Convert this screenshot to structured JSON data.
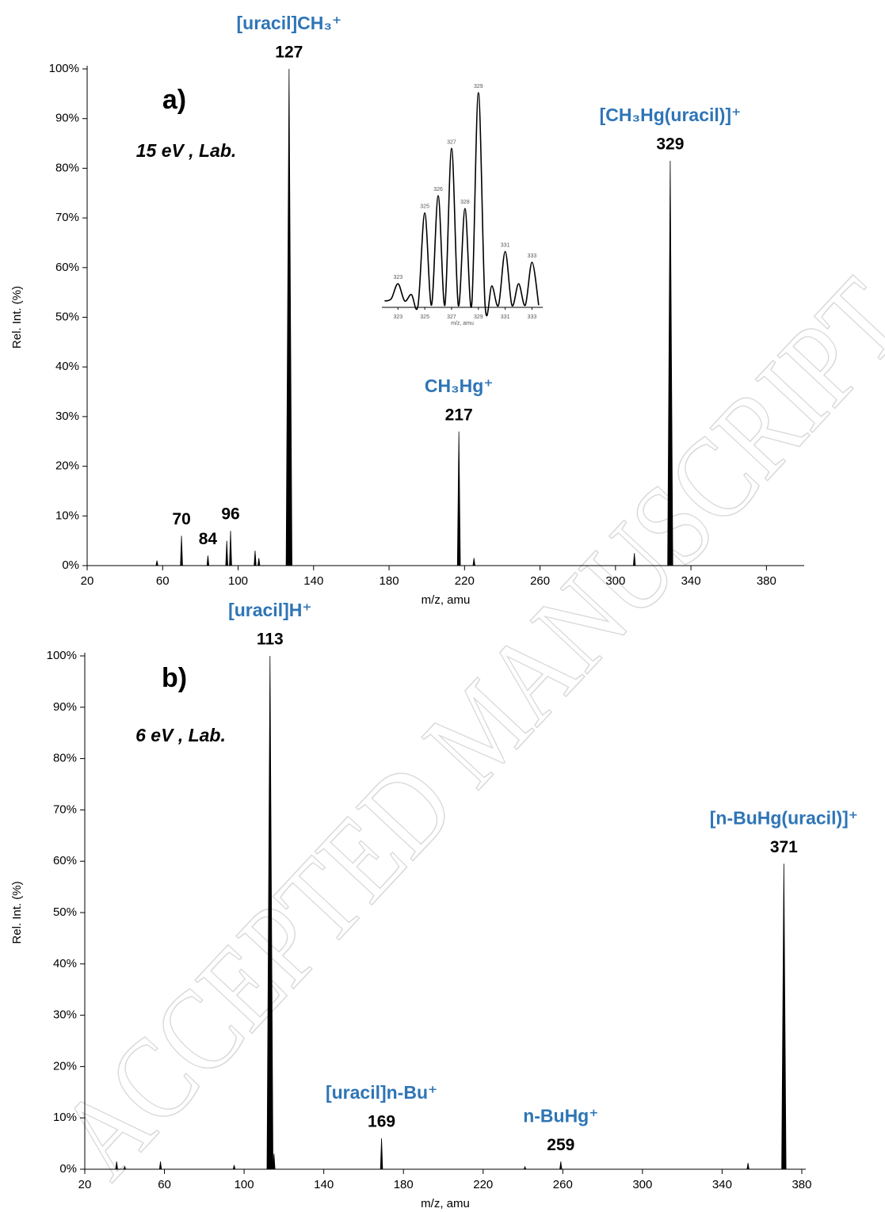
{
  "watermark": "ACCEPTED MANUSCRIPT",
  "chart_data": [
    {
      "type": "bar",
      "panel_label": "a)",
      "subtitle": "15 eV , Lab.",
      "ylabel": "Rel. Int. (%)",
      "xlabel": "m/z, amu",
      "color": "#000000",
      "x": [
        57,
        70,
        84,
        94,
        96,
        109,
        111,
        127,
        217,
        225,
        310,
        329
      ],
      "values": [
        1,
        6,
        2,
        5,
        7,
        3,
        1.5,
        100,
        27,
        1.5,
        2.5,
        81.5
      ],
      "peak_labels": [
        null,
        "70",
        "84",
        null,
        "96",
        null,
        null,
        "127",
        "217",
        null,
        null,
        "329"
      ],
      "ion_names": [
        null,
        null,
        null,
        null,
        null,
        null,
        null,
        "[uracil]CH₃⁺",
        "CH₃Hg⁺",
        null,
        null,
        "[CH₃Hg(uracil)]⁺"
      ],
      "ion_color": "#2e75b6",
      "xlim": [
        20,
        400
      ],
      "xticks": [
        20,
        60,
        100,
        140,
        180,
        220,
        260,
        300,
        340,
        380
      ],
      "ylim": [
        0,
        100
      ],
      "yticks": [
        {
          "value": 0,
          "label": "0%"
        },
        {
          "value": 10,
          "label": "10%"
        },
        {
          "value": 20,
          "label": "20%"
        },
        {
          "value": 30,
          "label": "30%"
        },
        {
          "value": 40,
          "label": "40%"
        },
        {
          "value": 50,
          "label": "50%"
        },
        {
          "value": 60,
          "label": "60%"
        },
        {
          "value": 70,
          "label": "70%"
        },
        {
          "value": 80,
          "label": "80%"
        },
        {
          "value": 90,
          "label": "90%"
        },
        {
          "value": 100,
          "label": "100%"
        }
      ]
    },
    {
      "type": "bar",
      "panel_label": "b)",
      "subtitle": "6 eV , Lab.",
      "ylabel": "Rel. Int. (%)",
      "xlabel": "m/z, amu",
      "color": "#000000",
      "x": [
        36,
        40,
        58,
        95,
        113,
        115,
        169,
        241,
        259,
        353,
        371
      ],
      "values": [
        1.5,
        0.5,
        1.5,
        0.8,
        100,
        3,
        6,
        0.5,
        1.5,
        1.2,
        59.5
      ],
      "peak_labels": [
        null,
        null,
        null,
        null,
        "113",
        null,
        "169",
        null,
        "259",
        null,
        "371"
      ],
      "ion_names": [
        null,
        null,
        null,
        null,
        "[uracil]H⁺",
        null,
        "[uracil]n-Bu⁺",
        null,
        "n-BuHg⁺",
        null,
        "[n-BuHg(uracil)]⁺"
      ],
      "ion_color": "#2e75b6",
      "xlim": [
        20,
        382
      ],
      "xticks": [
        20,
        60,
        100,
        140,
        180,
        220,
        260,
        300,
        340,
        380
      ],
      "ylim": [
        0,
        100
      ],
      "yticks": [
        {
          "value": 0,
          "label": "0%"
        },
        {
          "value": 10,
          "label": "10%"
        },
        {
          "value": 20,
          "label": "20%"
        },
        {
          "value": 30,
          "label": "30%"
        },
        {
          "value": 40,
          "label": "40%"
        },
        {
          "value": 50,
          "label": "50%"
        },
        {
          "value": 60,
          "label": "60%"
        },
        {
          "value": 70,
          "label": "70%"
        },
        {
          "value": 80,
          "label": "80%"
        },
        {
          "value": 90,
          "label": "90%"
        },
        {
          "value": 100,
          "label": "100%"
        }
      ]
    },
    {
      "type": "line",
      "xlabel": "m/z, amu",
      "color": "#000000",
      "x": [
        322,
        322.5,
        323,
        323.5,
        324,
        324.5,
        325,
        325.5,
        326,
        326.5,
        327,
        327.5,
        328,
        328.5,
        329,
        329.5,
        330,
        330.5,
        331,
        331.5,
        332,
        332.5,
        333,
        333.5
      ],
      "values": [
        3,
        4,
        11,
        3,
        6,
        1,
        44,
        1,
        52,
        1,
        74,
        1,
        46,
        1,
        100,
        1,
        10,
        1,
        26,
        1,
        11,
        1,
        21,
        1
      ],
      "peak_labels": [
        null,
        null,
        "323",
        null,
        null,
        null,
        "325",
        null,
        "326",
        null,
        "327",
        null,
        "328",
        null,
        "329",
        null,
        null,
        null,
        "331",
        null,
        null,
        null,
        "333",
        null
      ],
      "xlim": [
        321.8,
        333.8
      ],
      "xticks": [
        323,
        325,
        327,
        329,
        331,
        333
      ],
      "ylim": [
        0,
        100
      ]
    }
  ]
}
